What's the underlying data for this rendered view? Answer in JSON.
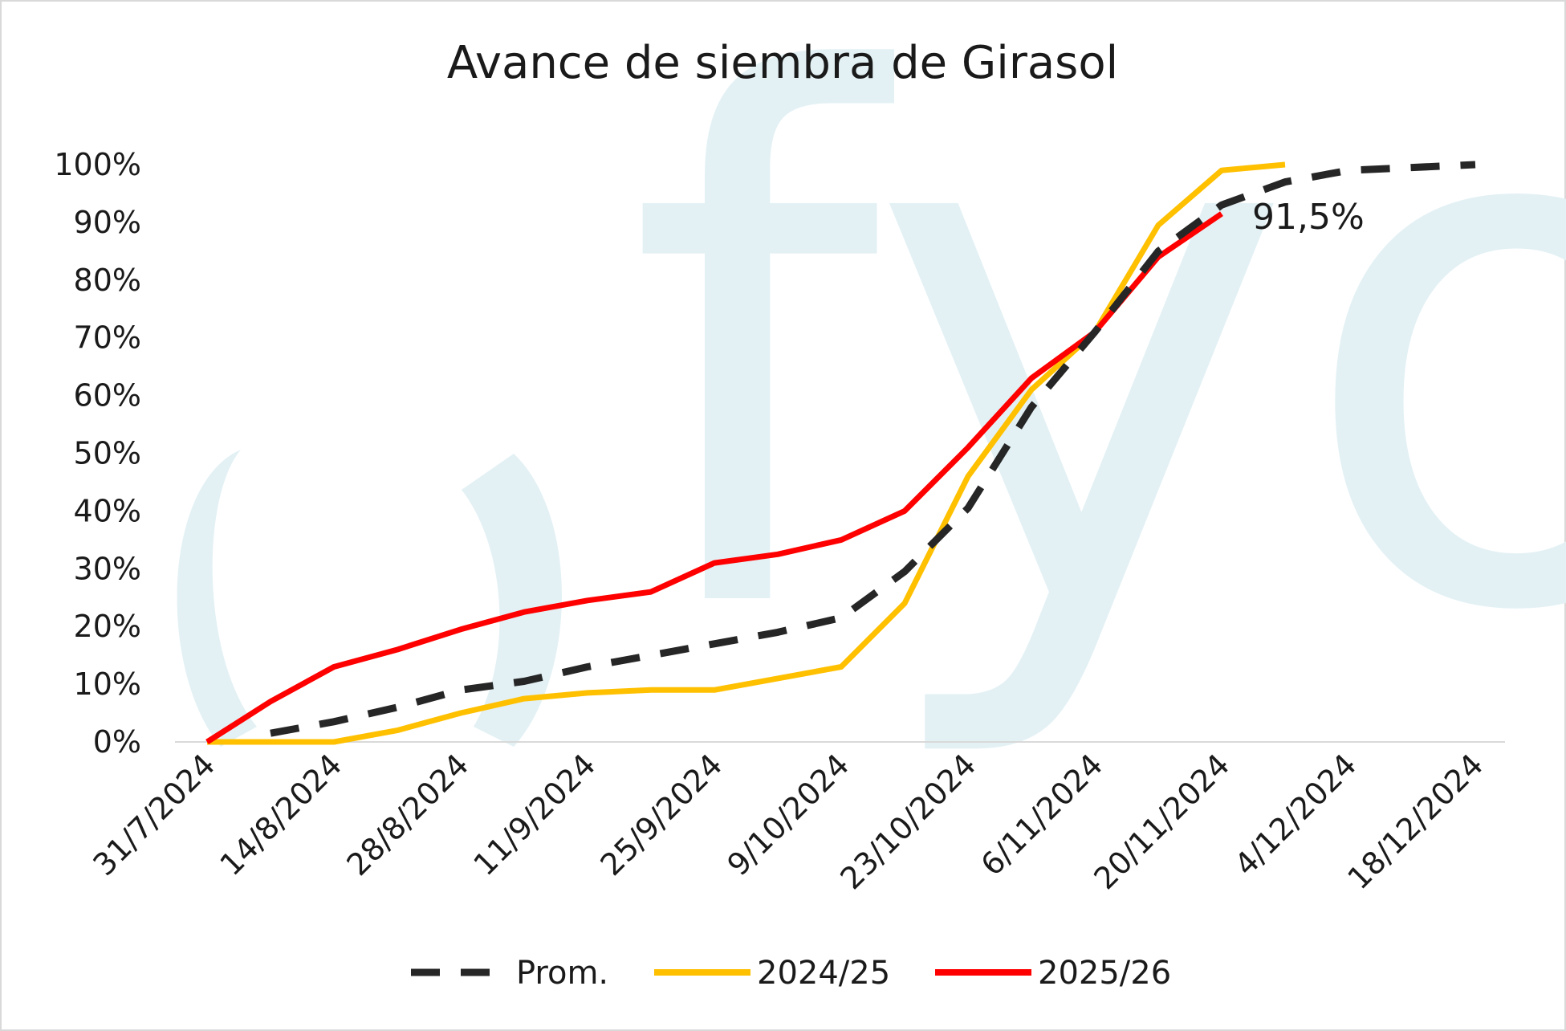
{
  "chart_data": {
    "type": "line",
    "title": "Avance de siembra de Girasol",
    "xlabel": "",
    "ylabel": "",
    "ylim": [
      0,
      100
    ],
    "y_ticks": [
      "0%",
      "10%",
      "20%",
      "30%",
      "40%",
      "50%",
      "60%",
      "70%",
      "80%",
      "90%",
      "100%"
    ],
    "x_tick_labels": [
      "31/7/2024",
      "14/8/2024",
      "28/8/2024",
      "11/9/2024",
      "25/9/2024",
      "9/10/2024",
      "23/10/2024",
      "6/11/2024",
      "20/11/2024",
      "4/12/2024",
      "18/12/2024"
    ],
    "x": [
      "31/7/2024",
      "7/8/2024",
      "14/8/2024",
      "21/8/2024",
      "28/8/2024",
      "4/9/2024",
      "11/9/2024",
      "18/9/2024",
      "25/9/2024",
      "2/10/2024",
      "9/10/2024",
      "16/10/2024",
      "23/10/2024",
      "30/10/2024",
      "6/11/2024",
      "13/11/2024",
      "20/11/2024",
      "27/11/2024",
      "4/12/2024",
      "11/12/2024",
      "18/12/2024"
    ],
    "series": [
      {
        "name": "Prom.",
        "color": "#262626",
        "dash": true,
        "values": [
          null,
          1.5,
          3.5,
          6,
          9,
          10.5,
          13,
          15,
          17,
          19,
          21.5,
          29.5,
          40.5,
          58,
          71,
          85,
          93,
          97,
          99,
          99.5,
          100
        ]
      },
      {
        "name": "2024/25",
        "color": "#ffc000",
        "dash": false,
        "values": [
          0,
          0,
          0,
          2,
          5,
          7.5,
          8.5,
          9,
          9,
          11,
          13,
          24,
          46,
          61,
          71,
          89.5,
          99,
          100,
          null,
          null,
          null
        ]
      },
      {
        "name": "2025/26",
        "color": "#ff0000",
        "dash": false,
        "values": [
          0,
          7,
          13,
          16,
          19.5,
          22.5,
          24.5,
          26,
          31,
          32.5,
          35,
          40,
          51,
          63,
          71,
          84,
          91.5,
          null,
          null,
          null,
          null
        ]
      }
    ],
    "annotation": "91,5%",
    "legend_position": "bottom",
    "grid": false
  },
  "watermark": {
    "text": "fyo",
    "color": "#e3f1f5"
  }
}
